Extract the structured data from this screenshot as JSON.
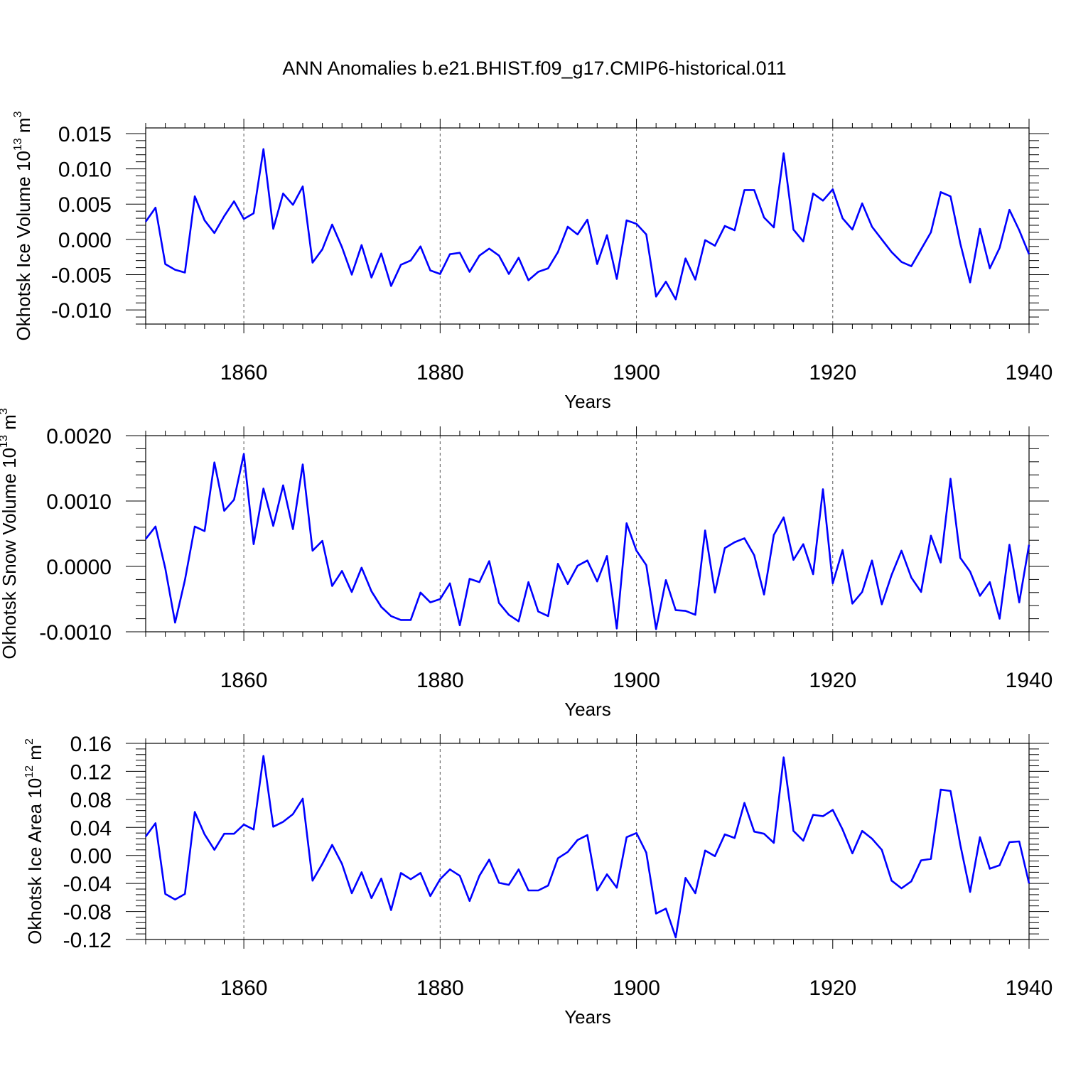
{
  "title": "ANN Anomalies b.e21.BHIST.f09_g17.CMIP6-historical.011",
  "colors": {
    "line": "#0000ff",
    "axes": "#000000",
    "grid": "#555555"
  },
  "chart_data": [
    {
      "type": "line",
      "xlabel": "Years",
      "ylabel_main": "Okhotsk Ice Volume 10",
      "ylabel_exp": "13",
      "ylabel_unit": " m",
      "ylabel_unit_exp": "3",
      "xlim": [
        1850,
        1940
      ],
      "ylim": [
        -0.012,
        0.0158
      ],
      "xticks": [
        1860,
        1880,
        1900,
        1920,
        1940
      ],
      "yticks": [
        -0.01,
        -0.005,
        0.0,
        0.005,
        0.01,
        0.015
      ],
      "ytick_labels": [
        "-0.010",
        "-0.005",
        "0.000",
        "0.005",
        "0.010",
        "0.015"
      ],
      "grid": "dashed vertical at 1860, 1880, 1900, 1920",
      "x": [
        1850,
        1851,
        1852,
        1853,
        1854,
        1855,
        1856,
        1857,
        1858,
        1859,
        1860,
        1861,
        1862,
        1863,
        1864,
        1865,
        1866,
        1867,
        1868,
        1869,
        1870,
        1871,
        1872,
        1873,
        1874,
        1875,
        1876,
        1877,
        1878,
        1879,
        1880,
        1881,
        1882,
        1883,
        1884,
        1885,
        1886,
        1887,
        1888,
        1889,
        1890,
        1891,
        1892,
        1893,
        1894,
        1895,
        1896,
        1897,
        1898,
        1899,
        1900,
        1901,
        1902,
        1903,
        1904,
        1905,
        1906,
        1907,
        1908,
        1909,
        1910,
        1911,
        1912,
        1913,
        1914,
        1915,
        1916,
        1917,
        1918,
        1919,
        1920,
        1921,
        1922,
        1923,
        1924,
        1925,
        1926,
        1927,
        1928,
        1929,
        1930,
        1931,
        1932,
        1933,
        1934,
        1935,
        1936,
        1937,
        1938,
        1939,
        1940
      ],
      "series": [
        {
          "values": [
            0.0025,
            0.0045,
            -0.0035,
            -0.0043,
            -0.0047,
            0.0061,
            0.0027,
            0.0009,
            0.0033,
            0.0054,
            0.0029,
            0.0037,
            0.0128,
            0.0015,
            0.0065,
            0.0049,
            0.0075,
            -0.0033,
            -0.0014,
            0.0021,
            -0.0011,
            -0.005,
            -0.0008,
            -0.0054,
            -0.002,
            -0.0066,
            -0.0036,
            -0.003,
            -0.001,
            -0.0044,
            -0.0049,
            -0.0021,
            -0.0019,
            -0.0046,
            -0.0023,
            -0.0013,
            -0.0023,
            -0.0049,
            -0.0026,
            -0.0058,
            -0.0046,
            -0.0041,
            -0.0018,
            0.0018,
            0.0007,
            0.0028,
            -0.0035,
            0.0006,
            -0.0056,
            0.0027,
            0.0022,
            0.0007,
            -0.0081,
            -0.006,
            -0.0085,
            -0.0027,
            -0.0057,
            -0.0001,
            -0.0009,
            0.0019,
            0.0013,
            0.007,
            0.007,
            0.0031,
            0.0017,
            0.0122,
            0.0014,
            -0.0003,
            0.0065,
            0.0055,
            0.0071,
            0.003,
            0.0014,
            0.0051,
            0.0018,
            0.0,
            -0.0018,
            -0.0032,
            -0.0038,
            -0.0014,
            0.001,
            0.0067,
            0.0061,
            -0.0006,
            -0.0061,
            0.0015,
            -0.0041,
            -0.0012,
            0.0042,
            0.0013,
            -0.0021
          ]
        }
      ]
    },
    {
      "type": "line",
      "xlabel": "Years",
      "ylabel_main": "Okhotsk Snow Volume 10",
      "ylabel_exp": "13",
      "ylabel_unit": " m",
      "ylabel_unit_exp": "3",
      "xlim": [
        1850,
        1940
      ],
      "ylim": [
        -0.001,
        0.002
      ],
      "xticks": [
        1860,
        1880,
        1900,
        1920,
        1940
      ],
      "yticks": [
        -0.001,
        0.0,
        0.001,
        0.002
      ],
      "ytick_labels": [
        "-0.0010",
        "0.0000",
        "0.0010",
        "0.0020"
      ],
      "grid": "dashed vertical at 1860, 1880, 1900, 1920",
      "x": [
        1850,
        1851,
        1852,
        1853,
        1854,
        1855,
        1856,
        1857,
        1858,
        1859,
        1860,
        1861,
        1862,
        1863,
        1864,
        1865,
        1866,
        1867,
        1868,
        1869,
        1870,
        1871,
        1872,
        1873,
        1874,
        1875,
        1876,
        1877,
        1878,
        1879,
        1880,
        1881,
        1882,
        1883,
        1884,
        1885,
        1886,
        1887,
        1888,
        1889,
        1890,
        1891,
        1892,
        1893,
        1894,
        1895,
        1896,
        1897,
        1898,
        1899,
        1900,
        1901,
        1902,
        1903,
        1904,
        1905,
        1906,
        1907,
        1908,
        1909,
        1910,
        1911,
        1912,
        1913,
        1914,
        1915,
        1916,
        1917,
        1918,
        1919,
        1920,
        1921,
        1922,
        1923,
        1924,
        1925,
        1926,
        1927,
        1928,
        1929,
        1930,
        1931,
        1932,
        1933,
        1934,
        1935,
        1936,
        1937,
        1938,
        1939,
        1940
      ],
      "series": [
        {
          "values": [
            0.00042,
            0.00061,
            -3e-05,
            -0.00086,
            -0.00021,
            0.00061,
            0.00054,
            0.00159,
            0.00085,
            0.00102,
            0.00172,
            0.00034,
            0.00119,
            0.00062,
            0.00124,
            0.00057,
            0.00156,
            0.00024,
            0.00039,
            -0.0003,
            -7e-05,
            -0.00039,
            -2e-05,
            -0.00038,
            -0.00062,
            -0.00076,
            -0.00082,
            -0.00082,
            -0.0004,
            -0.00055,
            -0.0005,
            -0.00026,
            -0.0009,
            -0.00019,
            -0.00024,
            8e-05,
            -0.00056,
            -0.00074,
            -0.00084,
            -0.00024,
            -0.00069,
            -0.00076,
            4e-05,
            -0.00027,
            1e-05,
            9e-05,
            -0.00023,
            0.00016,
            -0.00095,
            0.00066,
            0.00024,
            2e-05,
            -0.00096,
            -0.00021,
            -0.00067,
            -0.00068,
            -0.00074,
            0.00055,
            -0.0004,
            0.00028,
            0.00037,
            0.00043,
            0.00017,
            -0.00043,
            0.00048,
            0.00075,
            0.0001,
            0.00034,
            -0.00012,
            0.00118,
            -0.00026,
            0.00025,
            -0.00057,
            -0.00039,
            9e-05,
            -0.00058,
            -0.00013,
            0.00024,
            -0.00017,
            -0.00039,
            0.00047,
            6e-05,
            0.00134,
            0.00013,
            -8e-05,
            -0.00045,
            -0.00024,
            -0.0008,
            0.00033,
            -0.00055,
            0.00033
          ]
        }
      ]
    },
    {
      "type": "line",
      "xlabel": "Years",
      "ylabel_main": "Okhotsk Ice Area 10",
      "ylabel_exp": "12",
      "ylabel_unit": " m",
      "ylabel_unit_exp": "2",
      "xlim": [
        1850,
        1940
      ],
      "ylim": [
        -0.12,
        0.16
      ],
      "xticks": [
        1860,
        1880,
        1900,
        1920,
        1940
      ],
      "yticks": [
        -0.12,
        -0.08,
        -0.04,
        0.0,
        0.04,
        0.08,
        0.12,
        0.16
      ],
      "ytick_labels": [
        "-0.12",
        "-0.08",
        "-0.04",
        "0.00",
        "0.04",
        "0.08",
        "0.12",
        "0.16"
      ],
      "grid": "dashed vertical at 1860, 1880, 1900",
      "x": [
        1850,
        1851,
        1852,
        1853,
        1854,
        1855,
        1856,
        1857,
        1858,
        1859,
        1860,
        1861,
        1862,
        1863,
        1864,
        1865,
        1866,
        1867,
        1868,
        1869,
        1870,
        1871,
        1872,
        1873,
        1874,
        1875,
        1876,
        1877,
        1878,
        1879,
        1880,
        1881,
        1882,
        1883,
        1884,
        1885,
        1886,
        1887,
        1888,
        1889,
        1890,
        1891,
        1892,
        1893,
        1894,
        1895,
        1896,
        1897,
        1898,
        1899,
        1900,
        1901,
        1902,
        1903,
        1904,
        1905,
        1906,
        1907,
        1908,
        1909,
        1910,
        1911,
        1912,
        1913,
        1914,
        1915,
        1916,
        1917,
        1918,
        1919,
        1920,
        1921,
        1922,
        1923,
        1924,
        1925,
        1926,
        1927,
        1928,
        1929,
        1930,
        1931,
        1932,
        1933,
        1934,
        1935,
        1936,
        1937,
        1938,
        1939,
        1940
      ],
      "series": [
        {
          "values": [
            0.027,
            0.046,
            -0.055,
            -0.063,
            -0.055,
            0.062,
            0.03,
            0.008,
            0.031,
            0.031,
            0.044,
            0.037,
            0.142,
            0.041,
            0.048,
            0.059,
            0.081,
            -0.036,
            -0.012,
            0.015,
            -0.012,
            -0.054,
            -0.024,
            -0.061,
            -0.033,
            -0.078,
            -0.025,
            -0.034,
            -0.025,
            -0.058,
            -0.034,
            -0.02,
            -0.029,
            -0.065,
            -0.029,
            -0.006,
            -0.039,
            -0.042,
            -0.02,
            -0.05,
            -0.05,
            -0.043,
            -0.004,
            0.005,
            0.022,
            0.029,
            -0.05,
            -0.027,
            -0.046,
            0.026,
            0.032,
            0.004,
            -0.083,
            -0.076,
            -0.117,
            -0.032,
            -0.054,
            0.007,
            -0.001,
            0.03,
            0.025,
            0.075,
            0.034,
            0.031,
            0.018,
            0.14,
            0.035,
            0.021,
            0.058,
            0.056,
            0.065,
            0.037,
            0.003,
            0.035,
            0.024,
            0.008,
            -0.036,
            -0.047,
            -0.037,
            -0.007,
            -0.005,
            0.094,
            0.092,
            0.015,
            -0.052,
            0.026,
            -0.019,
            -0.014,
            0.019,
            0.02,
            -0.04
          ]
        }
      ]
    }
  ]
}
